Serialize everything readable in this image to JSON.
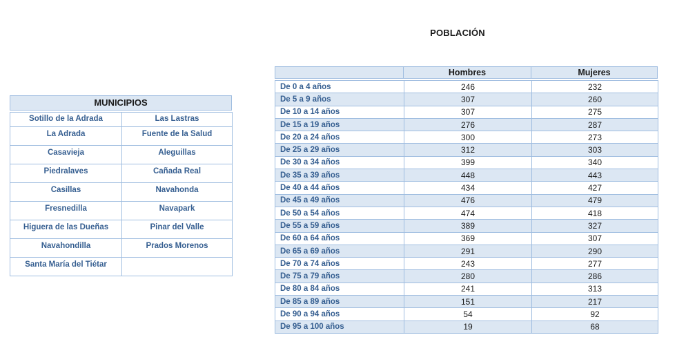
{
  "colors": {
    "fill": "#dce7f3",
    "border": "#9fbde0",
    "label_blue": "#365f91",
    "text_dark": "#1a1a1a",
    "page_bg": "#ffffff"
  },
  "municipios_table": {
    "title": "MUNICIPIOS",
    "rows": [
      [
        "Sotillo de la Adrada",
        "Las Lastras"
      ],
      [
        "La Adrada",
        "Fuente de la Salud"
      ],
      [
        "Casavieja",
        "Aleguillas"
      ],
      [
        "Piedralaves",
        "Cañada Real"
      ],
      [
        "Casillas",
        "Navahonda"
      ],
      [
        "Fresnedilla",
        "Navapark"
      ],
      [
        "Higuera de las Dueñas",
        "Pinar del Valle"
      ],
      [
        "Navahondilla",
        "Prados Morenos"
      ],
      [
        "Santa María del Tiétar",
        ""
      ]
    ]
  },
  "poblacion_table": {
    "title": "POBLACIÓN",
    "columns": [
      "",
      "Hombres",
      "Mujeres"
    ],
    "rows": [
      {
        "label": "De 0 a 4 años",
        "hombres": 246,
        "mujeres": 232
      },
      {
        "label": "De 5 a 9 años",
        "hombres": 307,
        "mujeres": 260
      },
      {
        "label": "De 10 a 14 años",
        "hombres": 307,
        "mujeres": 275
      },
      {
        "label": "De 15 a 19 años",
        "hombres": 276,
        "mujeres": 287
      },
      {
        "label": "De 20 a 24 años",
        "hombres": 300,
        "mujeres": 273
      },
      {
        "label": "De 25 a 29 años",
        "hombres": 312,
        "mujeres": 303
      },
      {
        "label": "De 30 a 34 años",
        "hombres": 399,
        "mujeres": 340
      },
      {
        "label": "De 35 a 39 años",
        "hombres": 448,
        "mujeres": 443
      },
      {
        "label": "De 40 a 44 años",
        "hombres": 434,
        "mujeres": 427
      },
      {
        "label": "De 45 a 49 años",
        "hombres": 476,
        "mujeres": 479
      },
      {
        "label": "De 50 a 54 años",
        "hombres": 474,
        "mujeres": 418
      },
      {
        "label": "De 55 a 59 años",
        "hombres": 389,
        "mujeres": 327
      },
      {
        "label": "De 60 a 64 años",
        "hombres": 369,
        "mujeres": 307
      },
      {
        "label": "De 65 a 69 años",
        "hombres": 291,
        "mujeres": 290
      },
      {
        "label": "De 70 a 74 años",
        "hombres": 243,
        "mujeres": 277
      },
      {
        "label": "De 75 a 79 años",
        "hombres": 280,
        "mujeres": 286
      },
      {
        "label": "De 80 a 84 años",
        "hombres": 241,
        "mujeres": 313
      },
      {
        "label": "De 85 a 89 años",
        "hombres": 151,
        "mujeres": 217
      },
      {
        "label": "De 90 a 94 años",
        "hombres": 54,
        "mujeres": 92
      },
      {
        "label": "De 95 a 100 años",
        "hombres": 19,
        "mujeres": 68
      }
    ]
  }
}
